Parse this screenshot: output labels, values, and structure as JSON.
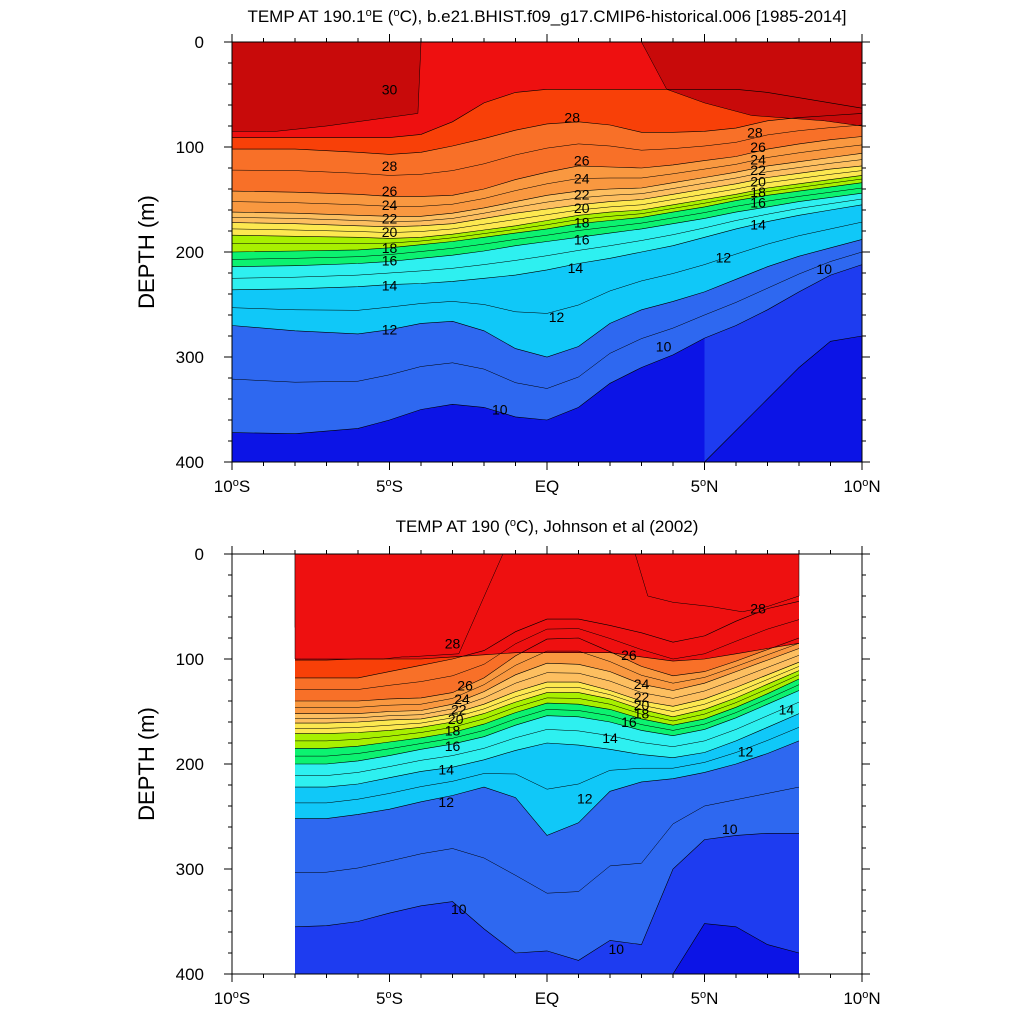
{
  "chart_data": [
    {
      "type": "contour",
      "title": "TEMP AT 190.1°E (°C), b.e21.BHIST.f09_g17.CMIP6-historical.006 [1985-2014]",
      "title_parts": {
        "pre": "TEMP AT 190.1",
        "sup": "o",
        "post": "E (",
        "sup2": "o",
        "post2": "C), b.e21.BHIST.f09_g17.CMIP6-historical.006 [1985-2014]"
      },
      "ylabel": "DEPTH (m)",
      "xlabel": "",
      "xlim": [
        -10,
        10
      ],
      "ylim": [
        0,
        400
      ],
      "y_inverted": true,
      "x_ticks": [
        {
          "value": -10,
          "num": "10",
          "dir": "S"
        },
        {
          "value": -5,
          "num": "5",
          "dir": "S"
        },
        {
          "value": 0,
          "num": "EQ",
          "dir": ""
        },
        {
          "value": 5,
          "num": "5",
          "dir": "N"
        },
        {
          "value": 10,
          "num": "10",
          "dir": "N"
        }
      ],
      "y_ticks": [
        0,
        100,
        200,
        300,
        400
      ],
      "data_x_range": [
        -10,
        10
      ],
      "contour_interval": 1,
      "x": [
        -10,
        -8,
        -6,
        -5,
        -4,
        -3,
        -2,
        -1,
        0,
        1,
        2,
        3,
        4,
        5,
        6,
        7,
        8,
        9,
        10
      ],
      "isotherm_depths": {
        "29": [
          91,
          91,
          91,
          91,
          88,
          76,
          58,
          48,
          45,
          45,
          45,
          45,
          45,
          45,
          45,
          48,
          53,
          58,
          63
        ],
        "28": [
          102,
          102,
          105,
          107,
          105,
          99,
          92,
          84,
          78,
          76,
          79,
          86,
          86,
          85,
          82,
          75,
          72,
          70,
          68
        ],
        "26": [
          142,
          143,
          145,
          147,
          147,
          146,
          140,
          131,
          124,
          118,
          119,
          120,
          117,
          113,
          109,
          102,
          97,
          93,
          90
        ],
        "24": [
          162,
          163,
          165,
          166,
          166,
          163,
          158,
          152,
          146,
          142,
          140,
          139,
          134,
          129,
          124,
          118,
          114,
          110,
          106
        ],
        "22": [
          172,
          173,
          175,
          176,
          175,
          173,
          168,
          163,
          159,
          155,
          152,
          150,
          145,
          140,
          135,
          129,
          125,
          121,
          118
        ],
        "20": [
          184,
          185,
          186,
          187,
          186,
          183,
          179,
          175,
          170,
          165,
          162,
          160,
          155,
          150,
          145,
          139,
          135,
          131,
          127
        ],
        "18": [
          200,
          199,
          198,
          196,
          193,
          190,
          186,
          182,
          178,
          173,
          170,
          167,
          162,
          157,
          151,
          146,
          142,
          138,
          134
        ],
        "16": [
          214,
          213,
          211,
          209,
          206,
          203,
          199,
          194,
          190,
          186,
          182,
          178,
          173,
          168,
          162,
          157,
          152,
          148,
          144
        ],
        "14": [
          236,
          235,
          233,
          231,
          230,
          228,
          225,
          222,
          217,
          211,
          206,
          200,
          194,
          186,
          178,
          171,
          165,
          160,
          155
        ],
        "12": [
          270,
          275,
          278,
          274,
          268,
          266,
          275,
          292,
          300,
          290,
          268,
          255,
          247,
          238,
          226,
          214,
          204,
          196,
          188
        ],
        "10": [
          372,
          373,
          368,
          360,
          350,
          345,
          348,
          357,
          360,
          348,
          325,
          310,
          298,
          282,
          270,
          255,
          238,
          222,
          212
        ],
        "9": [
          null,
          null,
          null,
          null,
          null,
          null,
          null,
          null,
          null,
          null,
          null,
          null,
          null,
          400,
          370,
          340,
          310,
          285,
          280
        ]
      },
      "warm_pools": [
        {
          "value": 30,
          "x": [
            -10,
            -8.9,
            -8.6,
            -7.0,
            -4.1,
            -4.0
          ],
          "depth": [
            85,
            85,
            85,
            80,
            68,
            0
          ]
        },
        {
          "value": 30,
          "x": [
            3.0,
            3.8,
            5.0,
            6.5,
            8.8,
            10.0
          ],
          "depth": [
            0,
            45,
            58,
            70,
            75,
            80
          ]
        }
      ],
      "contour_labels": [
        {
          "text": "30",
          "x": -5.0,
          "depth": 45
        },
        {
          "text": "28",
          "x": -5.0,
          "depth": 118
        },
        {
          "text": "26",
          "x": -5.0,
          "depth": 142
        },
        {
          "text": "24",
          "x": -5.0,
          "depth": 155
        },
        {
          "text": "22",
          "x": -5.0,
          "depth": 168
        },
        {
          "text": "20",
          "x": -5.0,
          "depth": 181
        },
        {
          "text": "18",
          "x": -5.0,
          "depth": 196
        },
        {
          "text": "16",
          "x": -5.0,
          "depth": 208
        },
        {
          "text": "14",
          "x": -5.0,
          "depth": 232
        },
        {
          "text": "12",
          "x": -5.0,
          "depth": 274
        },
        {
          "text": "10",
          "x": -1.5,
          "depth": 350
        },
        {
          "text": "28",
          "x": 0.8,
          "depth": 72
        },
        {
          "text": "26",
          "x": 1.1,
          "depth": 113
        },
        {
          "text": "24",
          "x": 1.1,
          "depth": 130
        },
        {
          "text": "22",
          "x": 1.1,
          "depth": 145
        },
        {
          "text": "20",
          "x": 1.1,
          "depth": 158
        },
        {
          "text": "18",
          "x": 1.1,
          "depth": 172
        },
        {
          "text": "16",
          "x": 1.1,
          "depth": 188
        },
        {
          "text": "14",
          "x": 0.9,
          "depth": 215
        },
        {
          "text": "12",
          "x": 0.3,
          "depth": 262
        },
        {
          "text": "10",
          "x": 3.7,
          "depth": 290
        },
        {
          "text": "28",
          "x": 6.6,
          "depth": 86
        },
        {
          "text": "26",
          "x": 6.7,
          "depth": 100
        },
        {
          "text": "24",
          "x": 6.7,
          "depth": 112
        },
        {
          "text": "22",
          "x": 6.7,
          "depth": 122
        },
        {
          "text": "20",
          "x": 6.7,
          "depth": 133
        },
        {
          "text": "18",
          "x": 6.7,
          "depth": 143
        },
        {
          "text": "16",
          "x": 6.7,
          "depth": 153
        },
        {
          "text": "14",
          "x": 6.7,
          "depth": 174
        },
        {
          "text": "12",
          "x": 5.6,
          "depth": 205
        },
        {
          "text": "10",
          "x": 8.8,
          "depth": 216
        }
      ]
    },
    {
      "type": "contour",
      "title": "TEMP AT 190 (°C), Johnson et al (2002)",
      "title_parts": {
        "pre": "TEMP AT 190 (",
        "sup": "o",
        "post": "C), Johnson et al (2002)",
        "sup2": "",
        "post2": ""
      },
      "ylabel": "DEPTH (m)",
      "xlabel": "",
      "xlim": [
        -10,
        10
      ],
      "ylim": [
        0,
        400
      ],
      "y_inverted": true,
      "x_ticks": [
        {
          "value": -10,
          "num": "10",
          "dir": "S"
        },
        {
          "value": -5,
          "num": "5",
          "dir": "S"
        },
        {
          "value": 0,
          "num": "EQ",
          "dir": ""
        },
        {
          "value": 5,
          "num": "5",
          "dir": "N"
        },
        {
          "value": 10,
          "num": "10",
          "dir": "N"
        }
      ],
      "y_ticks": [
        0,
        100,
        200,
        300,
        400
      ],
      "data_x_range": [
        -8,
        8
      ],
      "contour_interval": 1,
      "x": [
        -8,
        -7,
        -6,
        -5,
        -4,
        -3,
        -2,
        -1,
        0,
        1,
        2,
        3,
        4,
        5,
        6,
        7,
        8
      ],
      "isotherm_depths": {
        "29": [
          101,
          101,
          100,
          100,
          100,
          98,
          96,
          94,
          94,
          94,
          94,
          98,
          102,
          100,
          95,
          90,
          85
        ],
        "28": [
          118,
          118,
          118,
          112,
          106,
          100,
          92,
          74,
          62,
          62,
          68,
          75,
          84,
          78,
          64,
          52,
          45
        ],
        "26": [
          140,
          140,
          140,
          138,
          137,
          132,
          118,
          97,
          81,
          80,
          93,
          107,
          116,
          112,
          102,
          91,
          80
        ],
        "24": [
          152,
          152,
          152,
          150,
          149,
          143,
          131,
          115,
          104,
          105,
          112,
          124,
          130,
          123,
          112,
          101,
          90
        ],
        "22": [
          161,
          161,
          160,
          158,
          157,
          152,
          143,
          131,
          122,
          122,
          130,
          140,
          145,
          138,
          127,
          115,
          103
        ],
        "20": [
          171,
          171,
          170,
          168,
          165,
          160,
          152,
          141,
          132,
          132,
          138,
          148,
          155,
          148,
          137,
          124,
          111
        ],
        "18": [
          185,
          185,
          183,
          179,
          175,
          170,
          162,
          151,
          142,
          143,
          148,
          157,
          163,
          157,
          146,
          133,
          119
        ],
        "16": [
          200,
          200,
          197,
          192,
          186,
          181,
          174,
          163,
          154,
          155,
          160,
          168,
          173,
          167,
          156,
          143,
          130
        ],
        "14": [
          222,
          222,
          219,
          213,
          207,
          203,
          196,
          187,
          180,
          182,
          186,
          191,
          194,
          189,
          178,
          165,
          152
        ],
        "12": [
          252,
          252,
          248,
          243,
          236,
          230,
          222,
          232,
          268,
          256,
          226,
          217,
          214,
          208,
          200,
          190,
          178
        ],
        "10": [
          355,
          354,
          350,
          342,
          335,
          331,
          357,
          380,
          378,
          387,
          368,
          372,
          300,
          272,
          268,
          266,
          266
        ],
        "9": [
          400,
          400,
          400,
          400,
          400,
          400,
          400,
          400,
          400,
          400,
          400,
          400,
          400,
          352,
          355,
          372,
          380
        ]
      },
      "warm_pools": [
        {
          "value": 30,
          "x": [
            -8.0,
            -7.5,
            -5.6,
            -5.2
          ],
          "depth": [
            70,
            70,
            70,
            0
          ]
        },
        {
          "value": 29,
          "x": [
            -8.0,
            -7.8,
            -7.3,
            -5.2,
            -4.6,
            -4.4,
            -2.8,
            -1.4
          ],
          "depth": [
            100,
            100,
            100,
            100,
            98,
            98,
            95,
            0
          ]
        },
        {
          "value": 29,
          "x": [
            2.8,
            3.2,
            4.0,
            5.2,
            6.2,
            7.0,
            8.0
          ],
          "depth": [
            0,
            40,
            46,
            50,
            55,
            50,
            40
          ]
        }
      ],
      "contour_labels": [
        {
          "text": "28",
          "x": -3.0,
          "depth": 85
        },
        {
          "text": "26",
          "x": -2.6,
          "depth": 125
        },
        {
          "text": "24",
          "x": -2.7,
          "depth": 138
        },
        {
          "text": "22",
          "x": -2.8,
          "depth": 148
        },
        {
          "text": "20",
          "x": -2.9,
          "depth": 157
        },
        {
          "text": "18",
          "x": -3.0,
          "depth": 168
        },
        {
          "text": "16",
          "x": -3.0,
          "depth": 183
        },
        {
          "text": "14",
          "x": -3.2,
          "depth": 205
        },
        {
          "text": "12",
          "x": -3.2,
          "depth": 236
        },
        {
          "text": "10",
          "x": -2.8,
          "depth": 338
        },
        {
          "text": "26",
          "x": 2.6,
          "depth": 96
        },
        {
          "text": "24",
          "x": 3.0,
          "depth": 124
        },
        {
          "text": "22",
          "x": 3.0,
          "depth": 136
        },
        {
          "text": "20",
          "x": 3.0,
          "depth": 144
        },
        {
          "text": "18",
          "x": 3.0,
          "depth": 152
        },
        {
          "text": "16",
          "x": 2.6,
          "depth": 160
        },
        {
          "text": "14",
          "x": 2.0,
          "depth": 175
        },
        {
          "text": "12",
          "x": 1.2,
          "depth": 233
        },
        {
          "text": "10",
          "x": 2.2,
          "depth": 376
        },
        {
          "text": "28",
          "x": 6.7,
          "depth": 52
        },
        {
          "text": "14",
          "x": 7.6,
          "depth": 148
        },
        {
          "text": "12",
          "x": 6.3,
          "depth": 188
        },
        {
          "text": "10",
          "x": 5.8,
          "depth": 262
        }
      ]
    }
  ]
}
